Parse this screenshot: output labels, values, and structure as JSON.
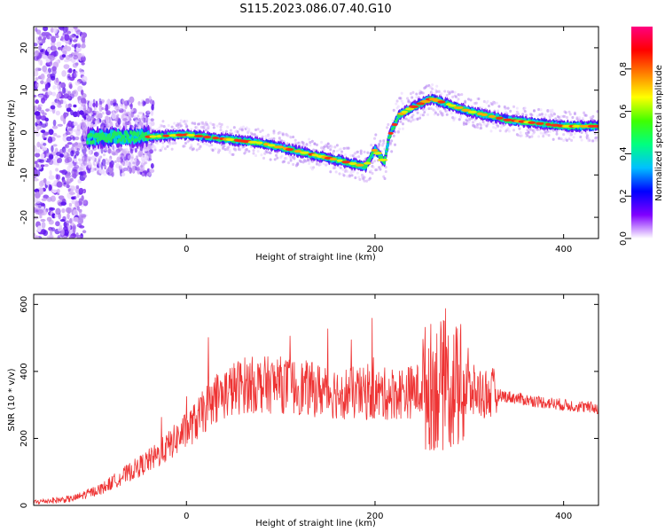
{
  "chart_data": [
    {
      "type": "heatmap",
      "title": "S115.2023.086.07.40.G10",
      "xlabel": "Height of straight line (km)",
      "ylabel": "Frequency (Hz)",
      "xlim": [
        -162,
        437
      ],
      "ylim": [
        -25,
        25
      ],
      "x_ticks": [
        0,
        200,
        400
      ],
      "y_ticks": [
        -20,
        -10,
        0,
        10,
        20
      ],
      "colorbar": {
        "label": "Normalized spectral amplitude",
        "range": [
          0,
          1
        ],
        "ticks": [
          "0.0",
          "0.2",
          "0.4",
          "0.6",
          "0.8"
        ],
        "colors": [
          "#ffffff",
          "#8000ff",
          "#0000ff",
          "#00c0ff",
          "#00ff80",
          "#40ff00",
          "#ffff00",
          "#ff8000",
          "#ff0000",
          "#ff0080"
        ]
      },
      "ridge": {
        "x": [
          -160,
          -120,
          -80,
          -50,
          -40,
          0,
          40,
          80,
          120,
          160,
          190,
          200,
          210,
          215,
          225,
          240,
          260,
          300,
          340,
          400,
          437
        ],
        "y": [
          -1,
          -1.5,
          -1,
          -1,
          -1,
          -0.5,
          -1.5,
          -2.5,
          -4.5,
          -6.5,
          -8,
          -4,
          -7,
          -1,
          4,
          6,
          8,
          5,
          3,
          1.5,
          1.5
        ]
      }
    },
    {
      "type": "line",
      "title": "",
      "xlabel": "Height of straight line (km)",
      "ylabel": "SNR (10 * v/v)",
      "xlim": [
        -162,
        437
      ],
      "ylim": [
        0,
        630
      ],
      "x_ticks": [
        0,
        200,
        400
      ],
      "y_ticks": [
        0,
        200,
        400,
        600
      ],
      "color": "#ee3333",
      "trend": {
        "x": [
          -162,
          -120,
          -90,
          -60,
          -30,
          -10,
          10,
          30,
          60,
          100,
          150,
          200,
          240,
          265,
          290,
          300,
          330,
          360,
          400,
          437
        ],
        "y": [
          10,
          20,
          50,
          100,
          150,
          200,
          250,
          320,
          360,
          360,
          340,
          330,
          340,
          360,
          350,
          340,
          330,
          315,
          300,
          290
        ]
      }
    }
  ]
}
